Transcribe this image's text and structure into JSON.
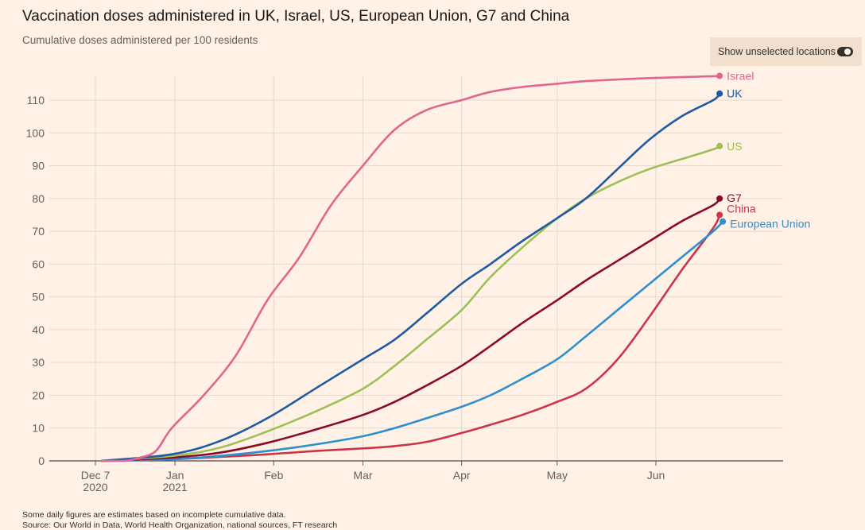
{
  "header": {
    "title": "Vaccination doses administered in UK, Israel, US, European Union, G7 and China",
    "subtitle": "Cumulative doses administered per 100 residents"
  },
  "toggle": {
    "label": "Show unselected locations",
    "state": "on"
  },
  "footer": {
    "note": "Some daily figures are estimates based on incomplete cumulative data.",
    "source": "Source: Our World in Data, World Health Organization, national sources, FT research"
  },
  "chart_data": {
    "type": "line",
    "title": "Vaccination doses administered in UK, Israel, US, European Union, G7 and China",
    "subtitle": "Cumulative doses administered per 100 residents",
    "xlabel": "",
    "ylabel": "Cumulative doses administered per 100 residents",
    "x_unit": "days since 2020-12-01",
    "xlim": [
      0,
      220
    ],
    "ylim": [
      0,
      120
    ],
    "y_ticks": [
      0,
      10,
      20,
      30,
      40,
      50,
      60,
      70,
      80,
      90,
      100,
      110
    ],
    "x_ticks": [
      {
        "day": 6,
        "line1": "Dec 7",
        "line2": "2020"
      },
      {
        "day": 31,
        "line1": "Jan",
        "line2": "2021"
      },
      {
        "day": 62,
        "line1": "Feb",
        "line2": ""
      },
      {
        "day": 90,
        "line1": "Mar",
        "line2": ""
      },
      {
        "day": 121,
        "line1": "Apr",
        "line2": ""
      },
      {
        "day": 151,
        "line1": "May",
        "line2": ""
      },
      {
        "day": 182,
        "line1": "Jun",
        "line2": ""
      }
    ],
    "grid": true,
    "series": [
      {
        "name": "China",
        "color": "#cc3549",
        "label": "China",
        "x": [
          8,
          30,
          45,
          60,
          75,
          90,
          100,
          110,
          121,
          130,
          140,
          151,
          160,
          170,
          180,
          190,
          200,
          202
        ],
        "y": [
          0,
          0.5,
          1.2,
          2,
          3,
          3.8,
          4.5,
          5.8,
          8.5,
          11,
          14,
          18,
          22,
          31,
          44,
          58,
          71,
          75
        ]
      },
      {
        "name": "European Union",
        "color": "#2e8fcf",
        "label": "European Union",
        "x": [
          8,
          30,
          45,
          60,
          75,
          90,
          100,
          110,
          121,
          130,
          140,
          151,
          160,
          170,
          180,
          190,
          200,
          203
        ],
        "y": [
          0,
          0.5,
          1.5,
          3,
          5,
          7.5,
          10,
          13,
          16.5,
          20,
          25,
          31,
          38,
          46,
          54,
          62,
          70,
          73
        ]
      },
      {
        "name": "G7",
        "color": "#8a0a2c",
        "label": "G7",
        "x": [
          8,
          30,
          45,
          60,
          75,
          90,
          100,
          110,
          121,
          130,
          140,
          151,
          160,
          170,
          180,
          190,
          200,
          202
        ],
        "y": [
          0,
          1,
          2.5,
          5.5,
          9.5,
          14,
          18,
          23,
          29,
          35,
          42,
          49,
          55,
          61,
          67,
          73,
          78,
          80
        ]
      },
      {
        "name": "US",
        "color": "#9ebf55",
        "label": "US",
        "x": [
          8,
          30,
          45,
          60,
          75,
          90,
          100,
          110,
          121,
          130,
          140,
          151,
          160,
          170,
          180,
          190,
          200,
          202
        ],
        "y": [
          0,
          1.5,
          4,
          9,
          15,
          22,
          29,
          37,
          46,
          56,
          65,
          74,
          80,
          85,
          89,
          92,
          95,
          96
        ]
      },
      {
        "name": "UK",
        "color": "#1f5aa3",
        "label": "UK",
        "x": [
          8,
          30,
          45,
          60,
          75,
          90,
          100,
          110,
          121,
          130,
          140,
          151,
          160,
          170,
          180,
          190,
          200,
          202
        ],
        "y": [
          0,
          2,
          6,
          13,
          22,
          31,
          37,
          45,
          54,
          60,
          67,
          74,
          80,
          89,
          98,
          105,
          110,
          112
        ]
      },
      {
        "name": "Israel",
        "color": "#e0668f",
        "label": "Israel",
        "x": [
          8,
          15,
          20,
          25,
          30,
          40,
          50,
          60,
          70,
          80,
          90,
          100,
          110,
          121,
          130,
          140,
          151,
          160,
          170,
          180,
          190,
          200,
          202
        ],
        "y": [
          0,
          0,
          1,
          3,
          10,
          20,
          32,
          49,
          62,
          78,
          90,
          101,
          107,
          110,
          112.5,
          114,
          115,
          115.8,
          116.3,
          116.7,
          117,
          117.3,
          117.4
        ]
      }
    ]
  }
}
